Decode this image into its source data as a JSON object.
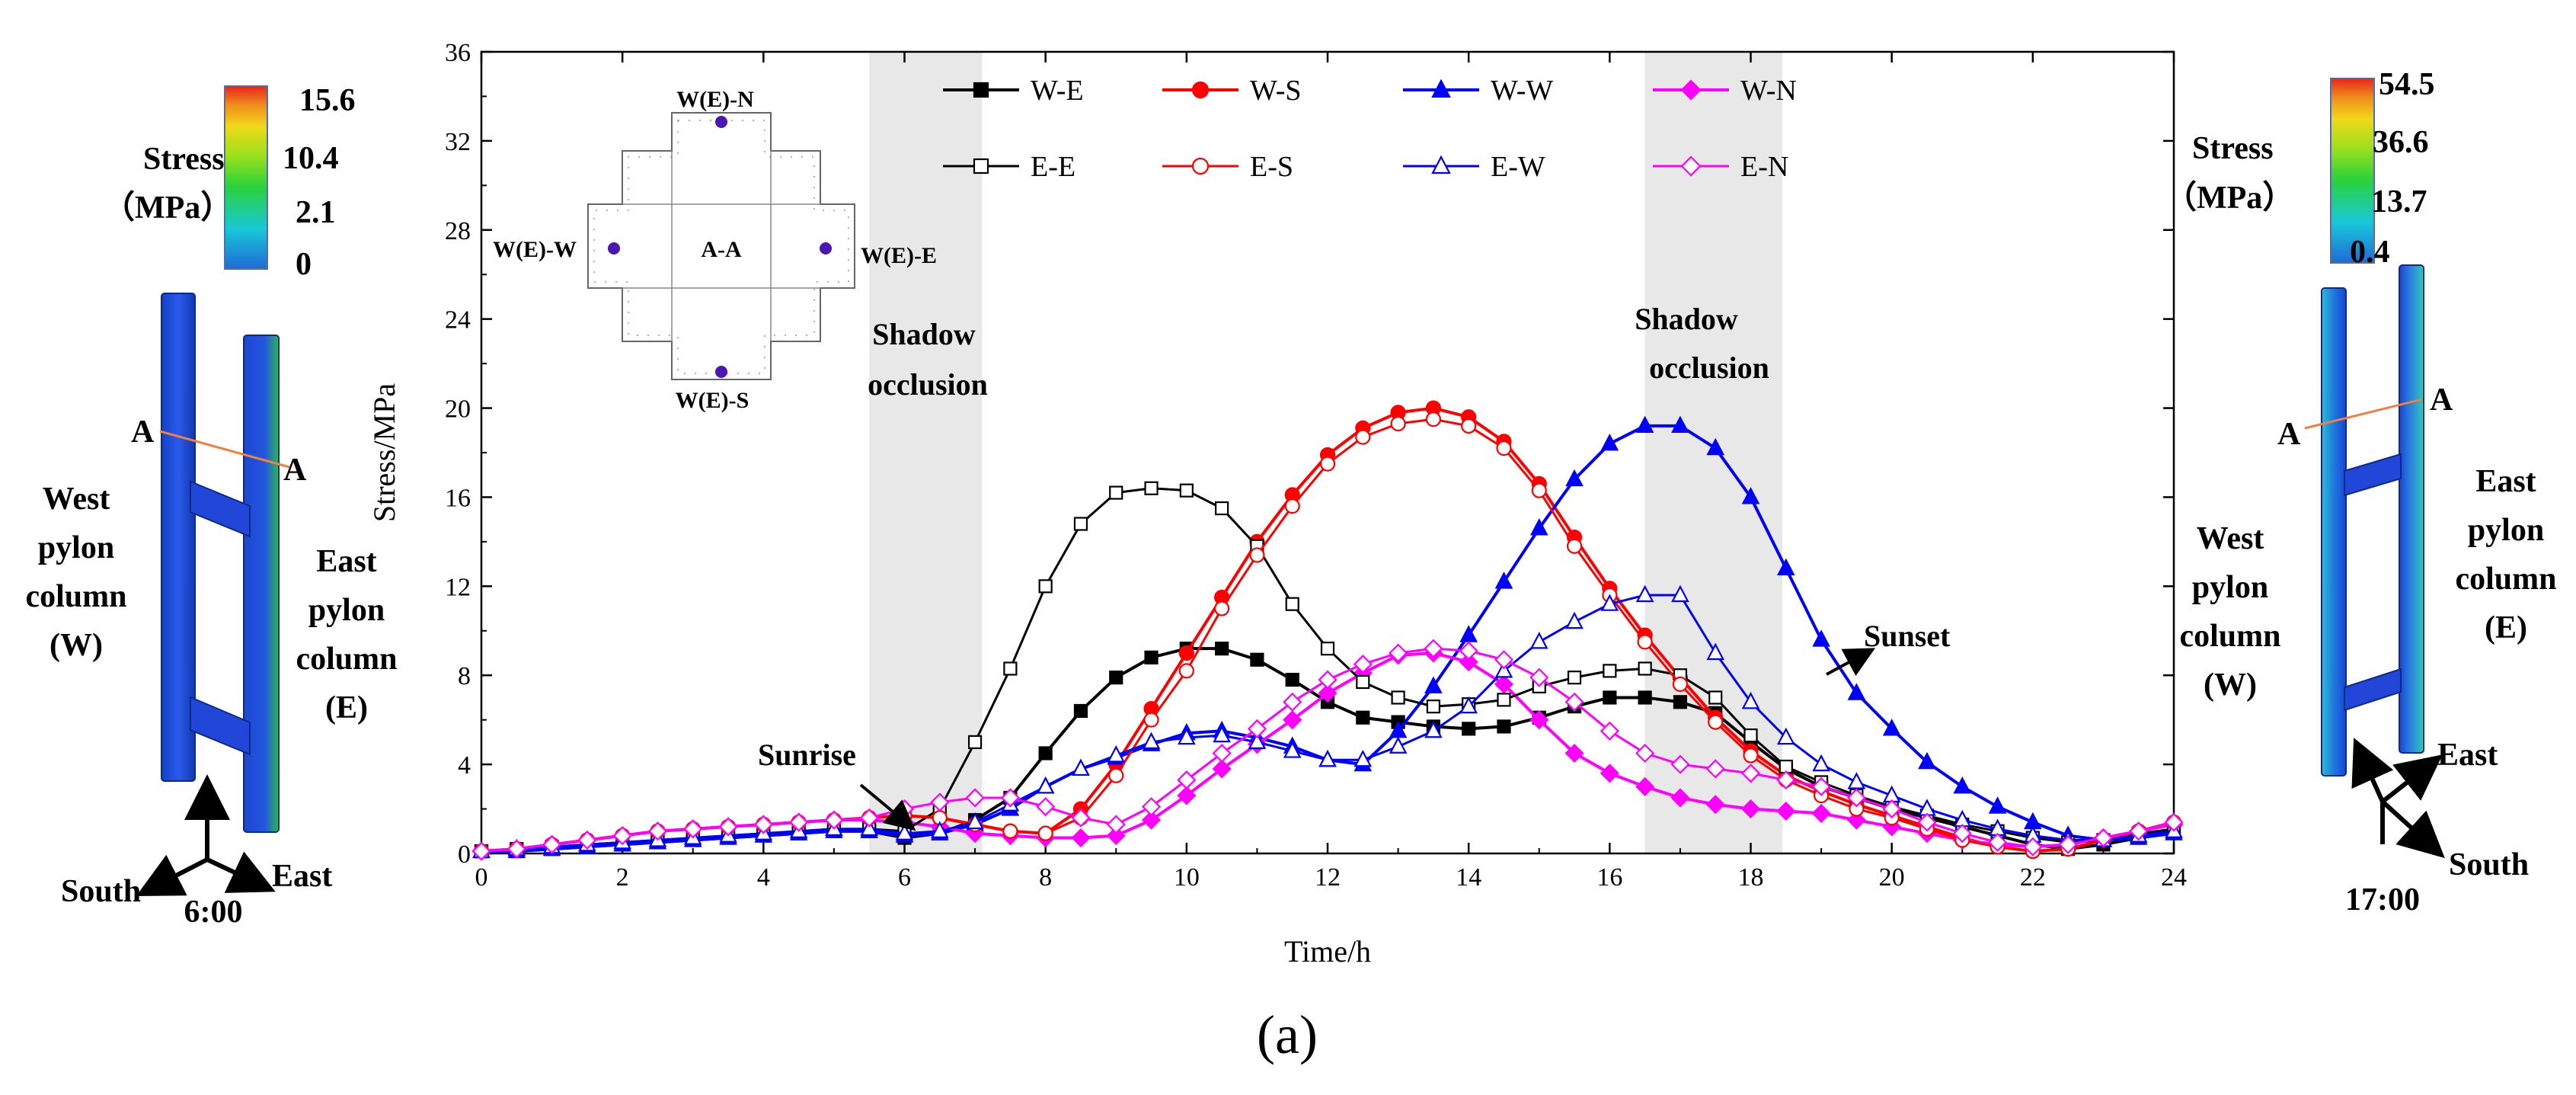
{
  "chart_data": {
    "type": "line",
    "title": "",
    "xlabel": "Time/h",
    "ylabel": "Stress/MPa",
    "xlim": [
      0,
      24
    ],
    "ylim": [
      0,
      36
    ],
    "x_ticks": [
      "0",
      "2",
      "4",
      "6",
      "8",
      "10",
      "12",
      "14",
      "16",
      "18",
      "20",
      "22",
      "24"
    ],
    "y_ticks": [
      "0",
      "4",
      "8",
      "12",
      "16",
      "20",
      "24",
      "28",
      "32",
      "36"
    ],
    "shaded_regions": [
      {
        "from": 5.5,
        "to": 7.1,
        "label_line1": "Shadow",
        "label_line2": "occlusion"
      },
      {
        "from": 16.5,
        "to": 18.45,
        "label_line1": "Shadow",
        "label_line2": "occlusion"
      }
    ],
    "x": [
      0,
      0.5,
      1,
      1.5,
      2,
      2.5,
      3,
      3.5,
      4,
      4.5,
      5,
      5.5,
      6,
      6.5,
      7,
      7.5,
      8,
      8.5,
      9,
      9.5,
      10,
      10.5,
      11,
      11.5,
      12,
      12.5,
      13,
      13.5,
      14,
      14.5,
      15,
      15.5,
      16,
      16.5,
      17,
      17.5,
      18,
      18.5,
      19,
      19.5,
      20,
      20.5,
      21,
      21.5,
      22,
      22.5,
      23,
      23.5,
      24
    ],
    "series": [
      {
        "name": "W-E",
        "color": "#000000",
        "marker": "square",
        "filled": true,
        "values": [
          0.1,
          0.1,
          0.2,
          0.3,
          0.4,
          0.5,
          0.6,
          0.7,
          0.8,
          0.9,
          1.0,
          1.0,
          0.7,
          0.9,
          1.5,
          2.5,
          4.5,
          6.4,
          7.9,
          8.8,
          9.2,
          9.2,
          8.7,
          7.8,
          6.8,
          6.1,
          5.9,
          5.7,
          5.6,
          5.7,
          6.1,
          6.6,
          7.0,
          7.0,
          6.8,
          6.3,
          5.0,
          3.8,
          3.0,
          2.5,
          2.0,
          1.6,
          1.2,
          0.8,
          0.4,
          0.2,
          0.4,
          0.7,
          1.0
        ]
      },
      {
        "name": "W-S",
        "color": "#ff0000",
        "marker": "circle",
        "filled": true,
        "values": [
          0.1,
          0.2,
          0.4,
          0.6,
          0.8,
          1.0,
          1.1,
          1.2,
          1.3,
          1.4,
          1.5,
          1.6,
          1.7,
          1.6,
          1.3,
          1.0,
          0.9,
          2.0,
          4.0,
          6.5,
          9.0,
          11.5,
          14.0,
          16.1,
          17.9,
          19.1,
          19.8,
          20.0,
          19.6,
          18.5,
          16.6,
          14.2,
          11.9,
          9.8,
          7.9,
          6.1,
          4.6,
          3.5,
          2.8,
          2.2,
          1.7,
          1.2,
          0.7,
          0.3,
          0.1,
          0.2,
          0.6,
          1.0,
          1.4
        ]
      },
      {
        "name": "W-W",
        "color": "#0000ff",
        "marker": "triangle",
        "filled": true,
        "values": [
          0.1,
          0.1,
          0.2,
          0.3,
          0.4,
          0.5,
          0.6,
          0.7,
          0.8,
          0.9,
          1.0,
          1.0,
          0.8,
          0.9,
          1.3,
          2.0,
          3.0,
          3.8,
          4.3,
          4.9,
          5.4,
          5.5,
          5.2,
          4.8,
          4.2,
          4.0,
          5.5,
          7.5,
          9.8,
          12.2,
          14.6,
          16.8,
          18.4,
          19.2,
          19.2,
          18.2,
          16.0,
          12.8,
          9.6,
          7.2,
          5.6,
          4.1,
          3.0,
          2.1,
          1.4,
          0.8,
          0.6,
          0.7,
          0.9
        ]
      },
      {
        "name": "W-N",
        "color": "#ff00ff",
        "marker": "diamond",
        "filled": true,
        "values": [
          0.1,
          0.2,
          0.4,
          0.6,
          0.8,
          1.0,
          1.1,
          1.2,
          1.3,
          1.4,
          1.5,
          1.5,
          1.4,
          1.2,
          0.9,
          0.8,
          0.7,
          0.7,
          0.8,
          1.5,
          2.6,
          3.8,
          4.9,
          6.0,
          7.2,
          8.1,
          8.9,
          9.0,
          8.6,
          7.6,
          6.0,
          4.5,
          3.6,
          3.0,
          2.5,
          2.2,
          2.0,
          1.9,
          1.8,
          1.5,
          1.2,
          0.9,
          0.6,
          0.4,
          0.3,
          0.4,
          0.7,
          1.0,
          1.3
        ]
      },
      {
        "name": "E-E",
        "color": "#000000",
        "marker": "square",
        "filled": false,
        "values": [
          0.1,
          0.2,
          0.3,
          0.4,
          0.5,
          0.6,
          0.7,
          0.8,
          0.9,
          1.0,
          1.1,
          1.1,
          1.0,
          2.0,
          5.0,
          8.3,
          12.0,
          14.8,
          16.2,
          16.4,
          16.3,
          15.5,
          13.8,
          11.2,
          9.2,
          7.7,
          7.0,
          6.6,
          6.7,
          6.9,
          7.5,
          7.9,
          8.2,
          8.3,
          8.0,
          7.0,
          5.3,
          3.9,
          3.2,
          2.6,
          2.1,
          1.7,
          1.3,
          1.0,
          0.7,
          0.5,
          0.6,
          0.9,
          1.1
        ]
      },
      {
        "name": "E-S",
        "color": "#ff0000",
        "marker": "circle",
        "filled": false,
        "values": [
          0.1,
          0.2,
          0.4,
          0.6,
          0.8,
          1.0,
          1.1,
          1.2,
          1.3,
          1.4,
          1.5,
          1.6,
          1.7,
          1.6,
          1.3,
          1.0,
          0.9,
          1.6,
          3.5,
          6.0,
          8.2,
          11.0,
          13.4,
          15.6,
          17.5,
          18.7,
          19.3,
          19.5,
          19.2,
          18.2,
          16.3,
          13.8,
          11.6,
          9.5,
          7.6,
          5.9,
          4.4,
          3.3,
          2.6,
          2.0,
          1.6,
          1.1,
          0.6,
          0.3,
          0.1,
          0.2,
          0.6,
          1.0,
          1.4
        ]
      },
      {
        "name": "E-W",
        "color": "#0000ff",
        "marker": "triangle",
        "filled": false,
        "values": [
          0.1,
          0.2,
          0.3,
          0.4,
          0.5,
          0.6,
          0.7,
          0.8,
          0.9,
          1.0,
          1.1,
          1.1,
          0.9,
          1.0,
          1.4,
          2.2,
          3.0,
          3.8,
          4.4,
          5.0,
          5.2,
          5.3,
          5.0,
          4.6,
          4.2,
          4.2,
          4.8,
          5.5,
          6.6,
          8.2,
          9.5,
          10.4,
          11.2,
          11.6,
          11.6,
          9.0,
          6.8,
          5.2,
          4.0,
          3.2,
          2.6,
          2.0,
          1.5,
          1.1,
          0.8,
          0.6,
          0.6,
          0.8,
          1.0
        ]
      },
      {
        "name": "E-N",
        "color": "#ff00ff",
        "marker": "diamond",
        "filled": false,
        "values": [
          0.1,
          0.2,
          0.4,
          0.6,
          0.8,
          1.0,
          1.1,
          1.2,
          1.3,
          1.4,
          1.5,
          1.6,
          2.0,
          2.3,
          2.5,
          2.5,
          2.1,
          1.6,
          1.3,
          2.1,
          3.3,
          4.5,
          5.6,
          6.8,
          7.8,
          8.5,
          9.0,
          9.2,
          9.1,
          8.7,
          7.9,
          6.8,
          5.5,
          4.5,
          4.0,
          3.8,
          3.6,
          3.3,
          3.0,
          2.5,
          2.0,
          1.4,
          0.9,
          0.5,
          0.3,
          0.4,
          0.7,
          1.0,
          1.4
        ]
      }
    ],
    "annotations": {
      "sunrise": "Sunrise",
      "sunset": "Sunset"
    }
  },
  "inset": {
    "title": "A-A",
    "north": "W(E)-N",
    "south": "W(E)-S",
    "west": "W(E)-W",
    "east": "W(E)-E"
  },
  "left_panel": {
    "legend_title_line1": "Stress",
    "legend_title_line2": "（MPa）",
    "legend_values": [
      "15.6",
      "10.4",
      "2.1",
      "0"
    ],
    "section_label_a1": "A",
    "section_label_a2": "A",
    "west_label": [
      "West",
      "pylon",
      "column",
      "(W)"
    ],
    "east_label": [
      "East",
      "pylon",
      "column",
      "(E)"
    ],
    "axis_south": "South",
    "axis_east": "East",
    "time": "6:00"
  },
  "right_panel": {
    "legend_title_line1": "Stress",
    "legend_title_line2": "（MPa）",
    "legend_values": [
      "54.5",
      "36.6",
      "13.7",
      "0.4"
    ],
    "section_label_a1": "A",
    "section_label_a2": "A",
    "west_label": [
      "West",
      "pylon",
      "column",
      "(W)"
    ],
    "east_label": [
      "East",
      "pylon",
      "column",
      "(E)"
    ],
    "axis_east": "East",
    "axis_south": "South",
    "time": "17:00"
  },
  "caption": "(a)"
}
